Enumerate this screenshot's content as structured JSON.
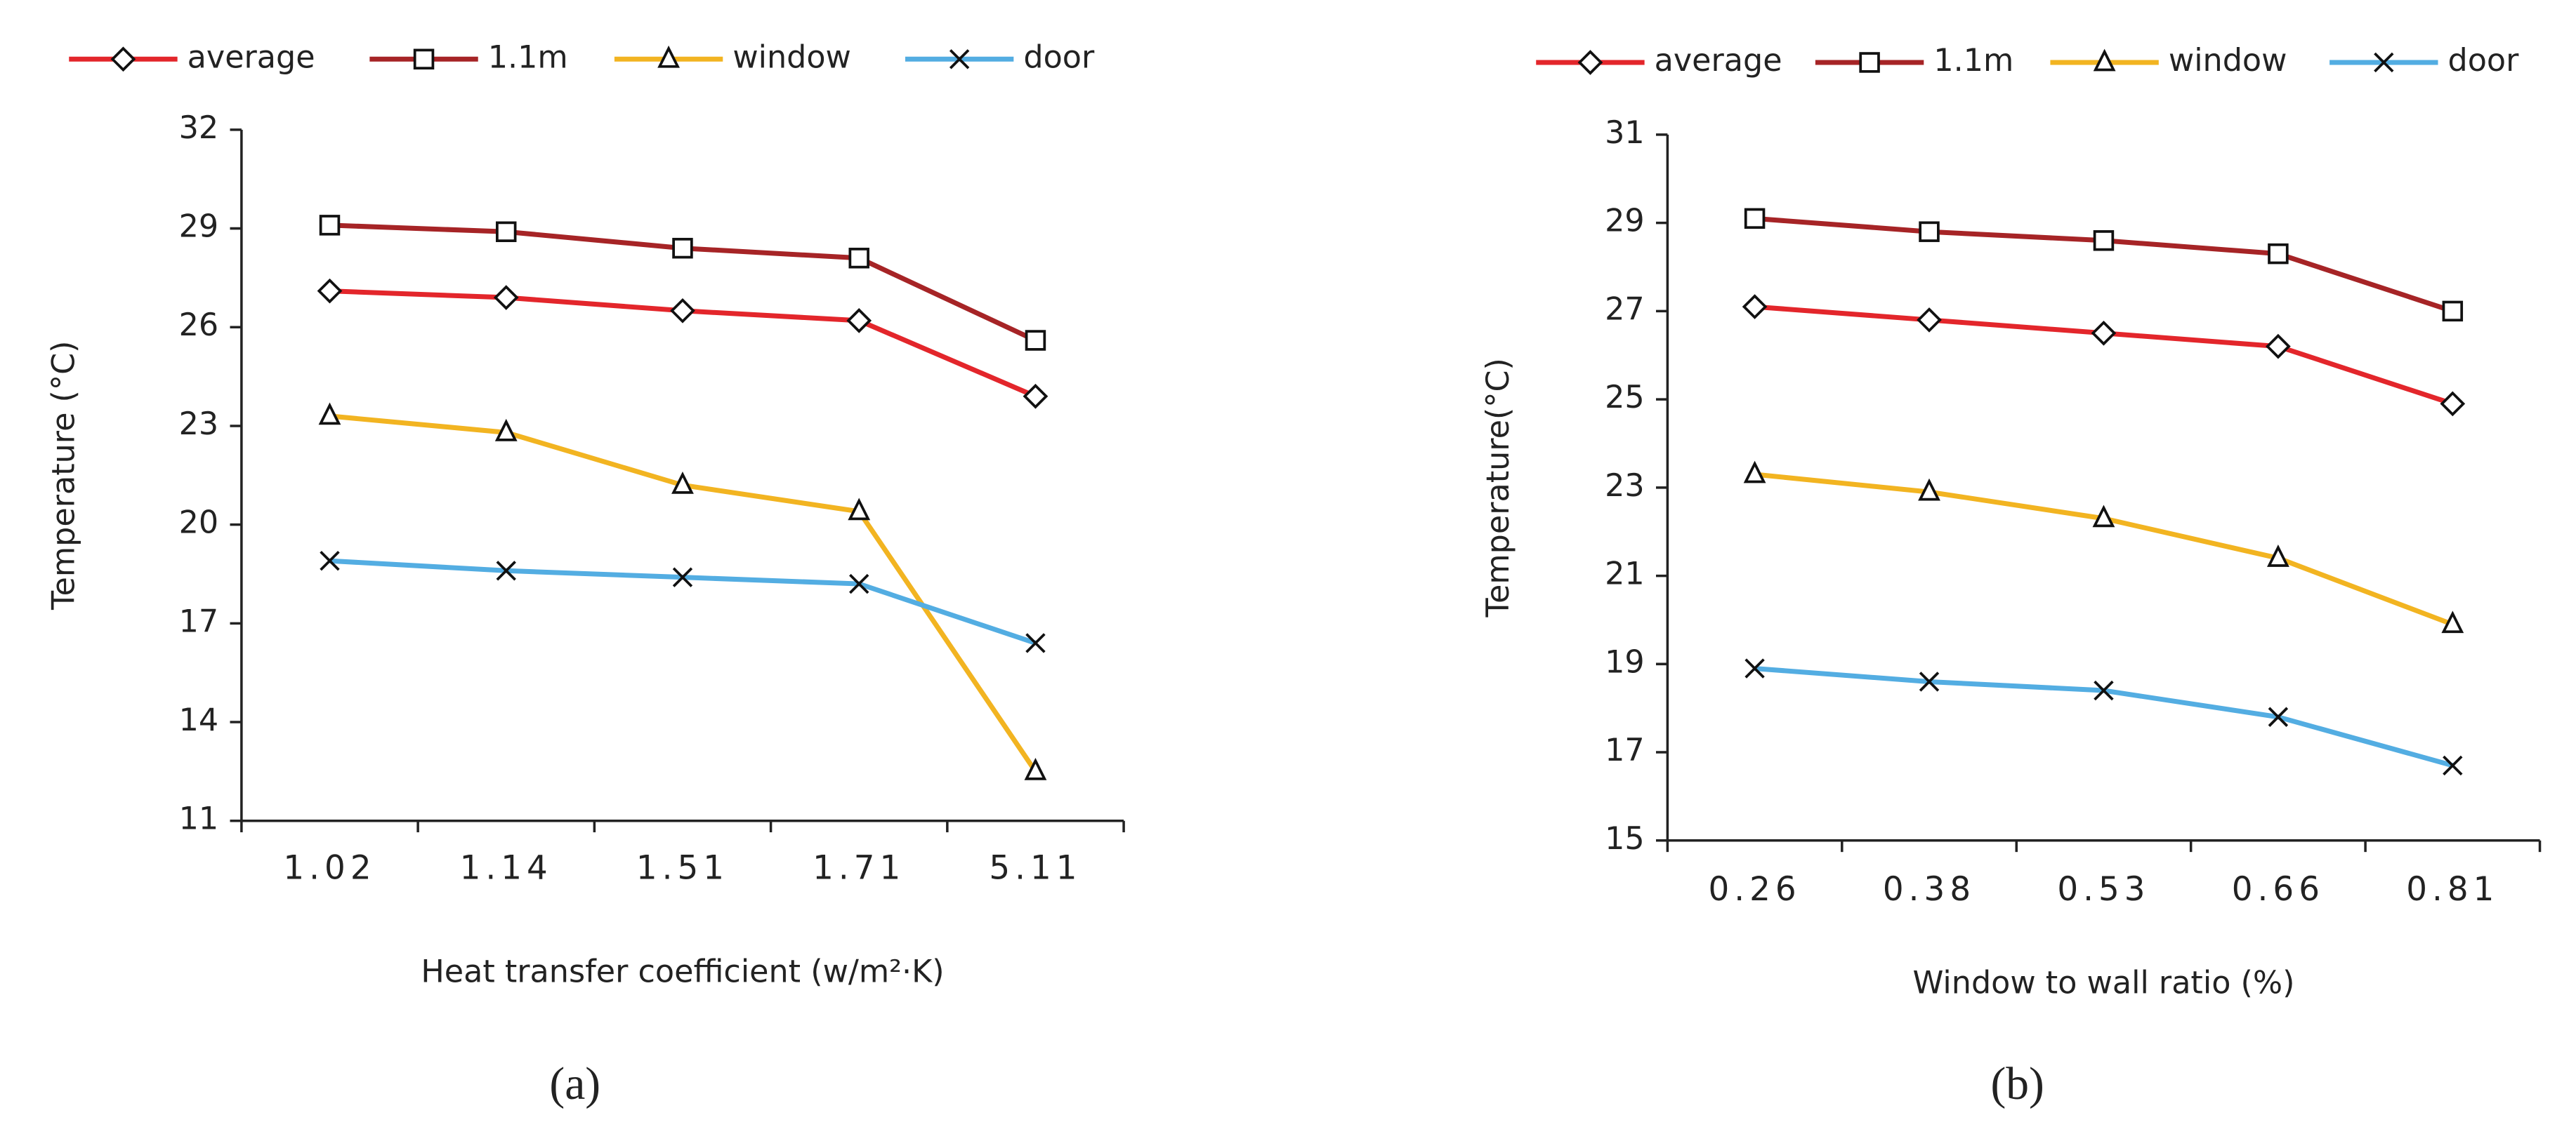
{
  "chart_data": [
    {
      "type": "line",
      "label": "(a)",
      "x_label": "Heat transfer coefficient (w/m²·K)",
      "y_label": "Temperature (°C)",
      "categories": [
        "1.02",
        "1.14",
        "1.51",
        "1.71",
        "5.11"
      ],
      "ylim": [
        11,
        32
      ],
      "yticks": [
        11,
        14,
        17,
        20,
        23,
        26,
        29,
        32
      ],
      "series": [
        {
          "name": "average",
          "color": "#e3262b",
          "marker": "diamond",
          "values": [
            27.1,
            26.9,
            26.5,
            26.2,
            23.9
          ]
        },
        {
          "name": "1.1m",
          "color": "#a62426",
          "marker": "square",
          "values": [
            29.1,
            28.9,
            28.4,
            28.1,
            25.6
          ]
        },
        {
          "name": "window",
          "color": "#f2b421",
          "marker": "triangle",
          "values": [
            23.3,
            22.8,
            21.2,
            20.4,
            12.5
          ]
        },
        {
          "name": "door",
          "color": "#53ade2",
          "marker": "x",
          "values": [
            18.9,
            18.6,
            18.4,
            18.2,
            16.4
          ]
        }
      ]
    },
    {
      "type": "line",
      "label": "(b)",
      "x_label": "Window to wall ratio (%)",
      "y_label": "Temperature(°C)",
      "categories": [
        "0.26",
        "0.38",
        "0.53",
        "0.66",
        "0.81"
      ],
      "ylim": [
        15,
        31
      ],
      "yticks": [
        15,
        17,
        19,
        21,
        23,
        25,
        27,
        29,
        31
      ],
      "series": [
        {
          "name": "average",
          "color": "#e3262b",
          "marker": "diamond",
          "values": [
            27.1,
            26.8,
            26.5,
            26.2,
            24.9
          ]
        },
        {
          "name": "1.1m",
          "color": "#a62426",
          "marker": "square",
          "values": [
            29.1,
            28.8,
            28.6,
            28.3,
            27.0
          ]
        },
        {
          "name": "window",
          "color": "#f2b421",
          "marker": "triangle",
          "values": [
            23.3,
            22.9,
            22.3,
            21.4,
            19.9
          ]
        },
        {
          "name": "door",
          "color": "#53ade2",
          "marker": "x",
          "values": [
            18.9,
            18.6,
            18.4,
            17.8,
            16.7
          ]
        }
      ]
    }
  ]
}
